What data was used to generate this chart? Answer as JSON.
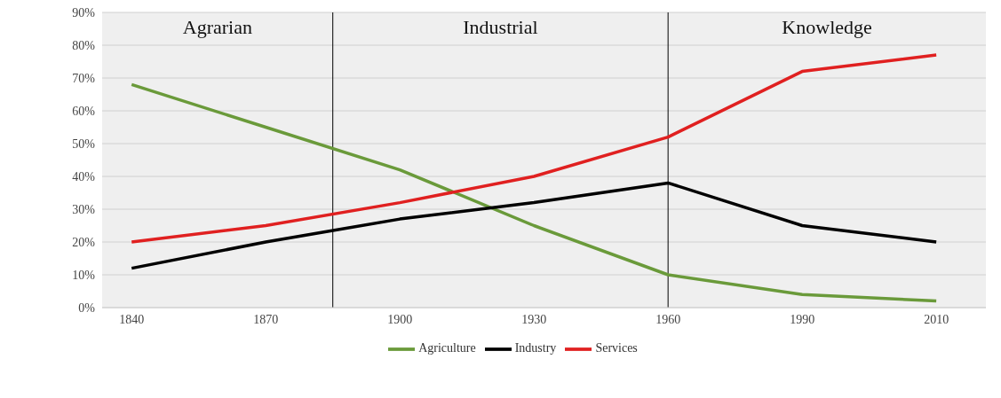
{
  "chart_data": {
    "type": "line",
    "categories": [
      "1840",
      "1870",
      "1900",
      "1930",
      "1960",
      "1990",
      "2010"
    ],
    "series": [
      {
        "name": "Agriculture",
        "color": "#6a9a3a",
        "values": [
          68,
          55,
          42,
          25,
          10,
          4,
          2
        ]
      },
      {
        "name": "Industry",
        "color": "#000000",
        "values": [
          12,
          20,
          27,
          32,
          38,
          25,
          20
        ]
      },
      {
        "name": "Services",
        "color": "#e02020",
        "values": [
          20,
          25,
          32,
          40,
          52,
          72,
          77
        ]
      }
    ],
    "ylim": [
      0,
      90
    ],
    "yticks": [
      {
        "value": 0,
        "label": "0%"
      },
      {
        "value": 10,
        "label": "10%"
      },
      {
        "value": 20,
        "label": "20%"
      },
      {
        "value": 30,
        "label": "30%"
      },
      {
        "value": 40,
        "label": "40%"
      },
      {
        "value": 50,
        "label": "50%"
      },
      {
        "value": 60,
        "label": "60%"
      },
      {
        "value": 70,
        "label": "70%"
      },
      {
        "value": 80,
        "label": "80%"
      },
      {
        "value": 90,
        "label": "90%"
      }
    ],
    "ref_lines": [
      {
        "axis": "x",
        "value": "1960",
        "color": "#000000"
      }
    ],
    "annotations": [
      "Agrarian",
      "Industrial",
      "Knowledge"
    ],
    "grid": "y",
    "legend": "bottom",
    "marker": "none",
    "line_style": "solid"
  }
}
